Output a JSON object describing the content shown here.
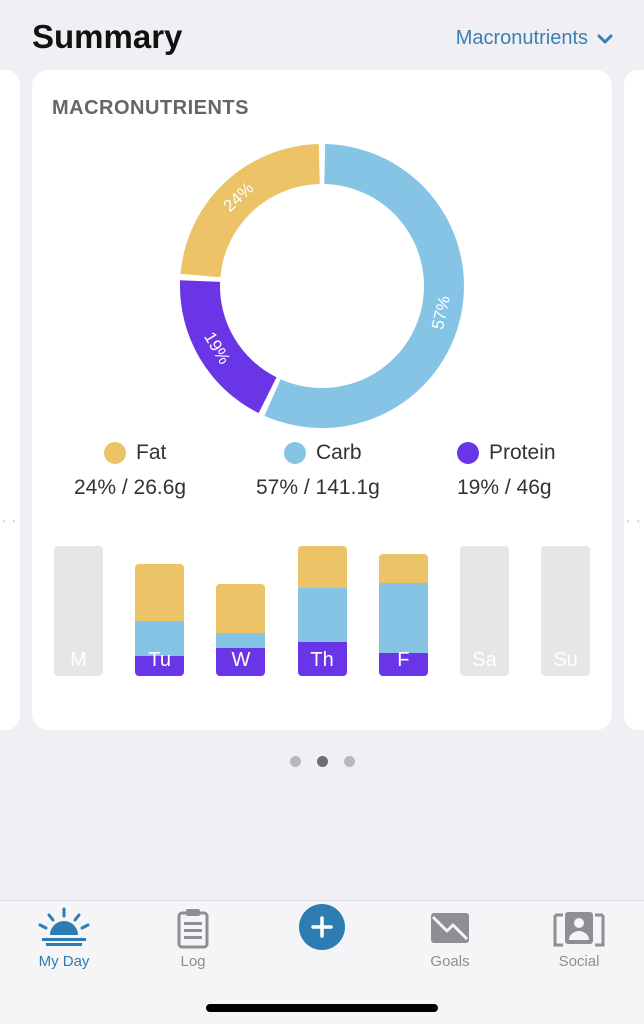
{
  "header": {
    "title": "Summary",
    "selector_label": "Macronutrients"
  },
  "card": {
    "title": "MACRONUTRIENTS"
  },
  "colors": {
    "fat": "#ecc367",
    "carb": "#86c4e6",
    "protein": "#6a35e6",
    "empty": "#e6e6e6",
    "accent": "#2d7db3"
  },
  "chart_data": [
    {
      "type": "pie",
      "title": "MACRONUTRIENTS",
      "categories": [
        "Fat",
        "Carb",
        "Protein"
      ],
      "values": [
        24,
        57,
        19
      ],
      "labels": [
        "24%",
        "57%",
        "19%"
      ],
      "donut": true
    },
    {
      "type": "bar",
      "stacked": true,
      "categories": [
        "M",
        "Tu",
        "W",
        "Th",
        "F",
        "Sa",
        "Su"
      ],
      "series": [
        {
          "name": "Protein",
          "values": [
            0,
            16,
            22,
            27,
            18,
            0,
            0
          ]
        },
        {
          "name": "Carb",
          "values": [
            0,
            27,
            12,
            42,
            55,
            0,
            0
          ]
        },
        {
          "name": "Fat",
          "values": [
            0,
            45,
            38,
            33,
            23,
            0,
            0
          ]
        }
      ],
      "ylim": [
        0,
        102
      ]
    }
  ],
  "legend": [
    {
      "name": "Fat",
      "value": "24% / 26.6g"
    },
    {
      "name": "Carb",
      "value": "57% / 141.1g"
    },
    {
      "name": "Protein",
      "value": "19% / 46g"
    }
  ],
  "pager": {
    "count": 3,
    "active": 1
  },
  "tabbar": {
    "tabs": [
      {
        "label": "My Day",
        "icon": "sunrise-icon",
        "active": true
      },
      {
        "label": "Log",
        "icon": "clipboard-icon",
        "active": false
      },
      {
        "label": "",
        "icon": "plus-icon",
        "active": false
      },
      {
        "label": "Goals",
        "icon": "goals-icon",
        "active": false
      },
      {
        "label": "Social",
        "icon": "social-icon",
        "active": false
      }
    ]
  }
}
